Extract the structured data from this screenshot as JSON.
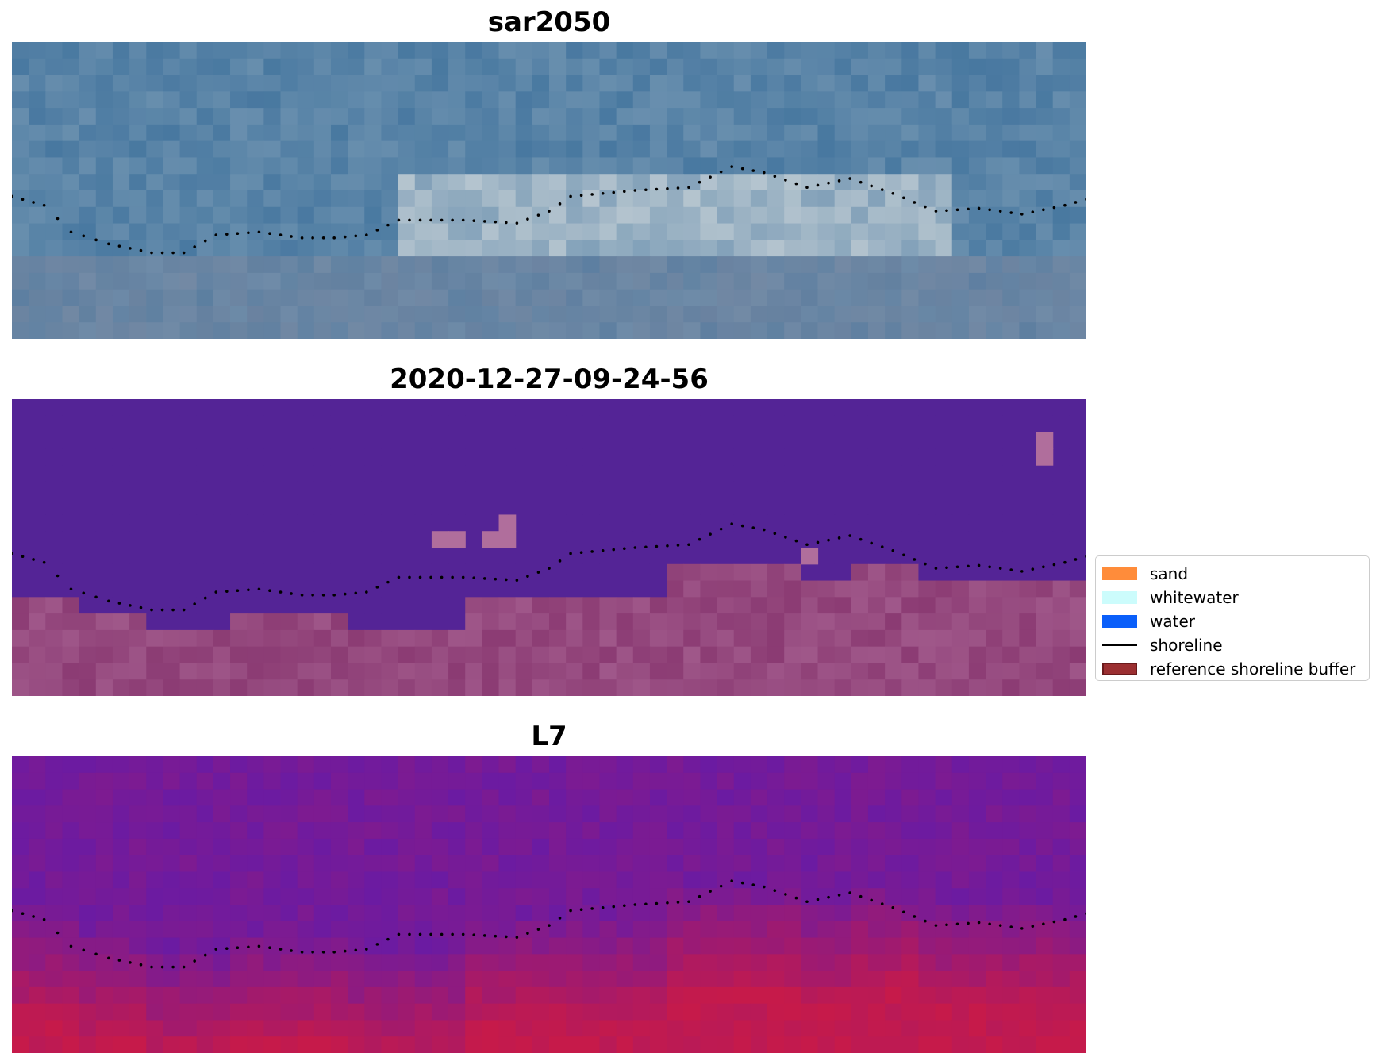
{
  "figure": {
    "panels": [
      {
        "title": "sar2050",
        "style": "rgb"
      },
      {
        "title": "2020-12-27-09-24-56",
        "style": "classified"
      },
      {
        "title": "L7",
        "style": "index"
      }
    ],
    "grid": {
      "cols": 64,
      "rows": 18
    },
    "shoreline_color": "#000000"
  },
  "legend": {
    "items": [
      {
        "label": "sand",
        "color": "#ff8c3a",
        "kind": "patch"
      },
      {
        "label": "whitewater",
        "color": "#ccfcfc",
        "kind": "patch"
      },
      {
        "label": "water",
        "color": "#0a5ffa",
        "kind": "patch"
      },
      {
        "label": "shoreline",
        "color": "#000000",
        "kind": "line"
      },
      {
        "label": "reference shoreline buffer",
        "color": "#9b2f31",
        "kind": "patch-edge"
      }
    ]
  },
  "colors": {
    "classified_water": "#542496",
    "classified_land": "#8b3b73",
    "classified_highlight": "#b06e9c",
    "index_low": "#6b1ba2",
    "index_high": "#c61a4a"
  }
}
